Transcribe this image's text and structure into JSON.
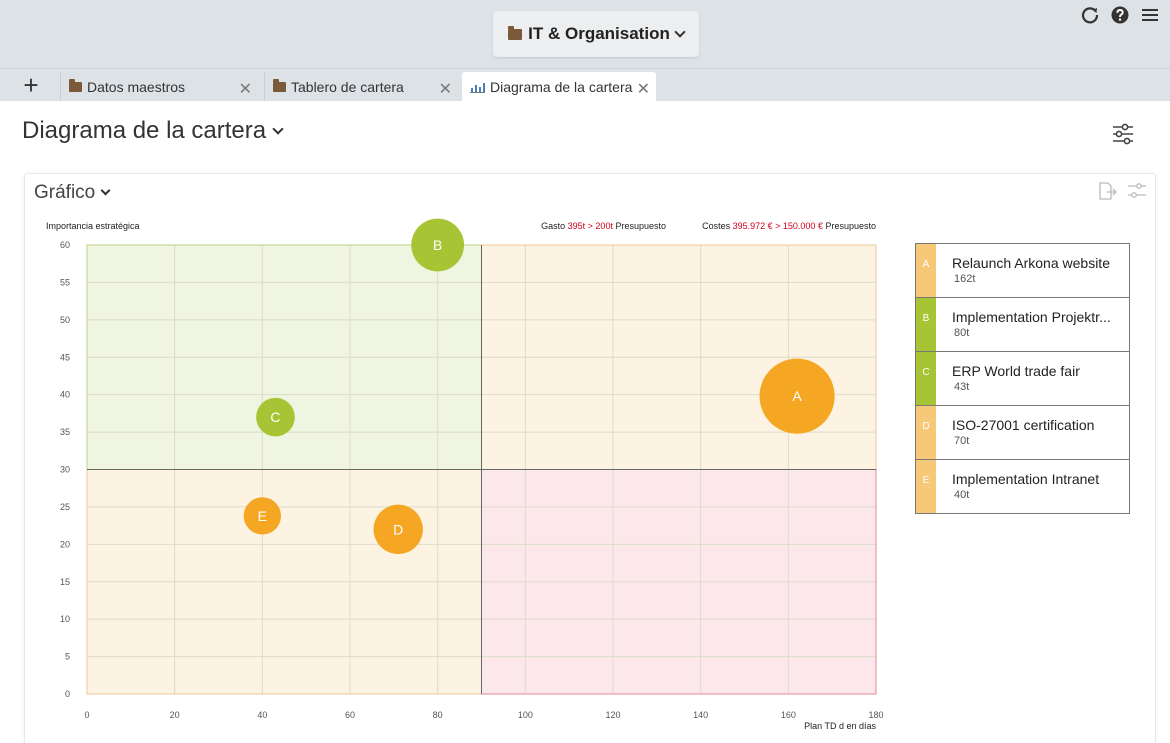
{
  "header": {
    "org_label": "IT & Organisation"
  },
  "top_icons": [
    "refresh-icon",
    "help-icon",
    "menu-icon"
  ],
  "tabs": [
    {
      "label": "Datos maestros",
      "icon": "folder-icon",
      "active": false
    },
    {
      "label": "Tablero de cartera",
      "icon": "folder-icon",
      "active": false
    },
    {
      "label": "Diagrama de la cartera",
      "icon": "chart-icon",
      "active": true
    }
  ],
  "page": {
    "title": "Diagrama de la cartera"
  },
  "card": {
    "title": "Gráfico"
  },
  "colors": {
    "orange": "#f5a623",
    "green": "#a6c434",
    "legend_orange": "#f8c879",
    "legend_green": "#a6c434",
    "red_text": "#d0021b"
  },
  "chart_data": {
    "type": "scatter",
    "ylabel": "Importancia estratégica",
    "xlabel": "Plan TD d en días",
    "xlim": [
      0,
      180
    ],
    "ylim": [
      0,
      60
    ],
    "xticks": [
      0,
      20,
      40,
      60,
      80,
      100,
      120,
      140,
      160,
      180
    ],
    "yticks": [
      0,
      5,
      10,
      15,
      20,
      25,
      30,
      35,
      40,
      45,
      50,
      55,
      60
    ],
    "grid": true,
    "quadrant_split": {
      "x": 90,
      "y": 30
    },
    "summary": {
      "gasto_label": "Gasto",
      "gasto_value": "395t > 200t",
      "gasto_suffix": "Presupuesto",
      "costes_label": "Costes",
      "costes_value": "395.972 € > 150.000 €",
      "costes_suffix": "Presupuesto"
    },
    "points": [
      {
        "key": "A",
        "x": 162,
        "y": 39.8,
        "size": 162,
        "color": "#f5a623"
      },
      {
        "key": "B",
        "x": 80,
        "y": 60,
        "size": 80,
        "color": "#a6c434"
      },
      {
        "key": "C",
        "x": 43,
        "y": 37,
        "size": 43,
        "color": "#a6c434"
      },
      {
        "key": "D",
        "x": 71,
        "y": 22,
        "size": 70,
        "color": "#f5a623"
      },
      {
        "key": "E",
        "x": 40,
        "y": 23.8,
        "size": 40,
        "color": "#f5a623"
      }
    ]
  },
  "legend": [
    {
      "key": "A",
      "name": "Relaunch Arkona website",
      "value": "162t",
      "color": "#f8c879"
    },
    {
      "key": "B",
      "name": "Implementation Projektr...",
      "value": "80t",
      "color": "#a6c434"
    },
    {
      "key": "C",
      "name": "ERP World trade fair",
      "value": "43t",
      "color": "#a6c434"
    },
    {
      "key": "D",
      "name": "ISO-27001 certification",
      "value": "70t",
      "color": "#f8c879"
    },
    {
      "key": "E",
      "name": "Implementation Intranet",
      "value": "40t",
      "color": "#f8c879"
    }
  ]
}
